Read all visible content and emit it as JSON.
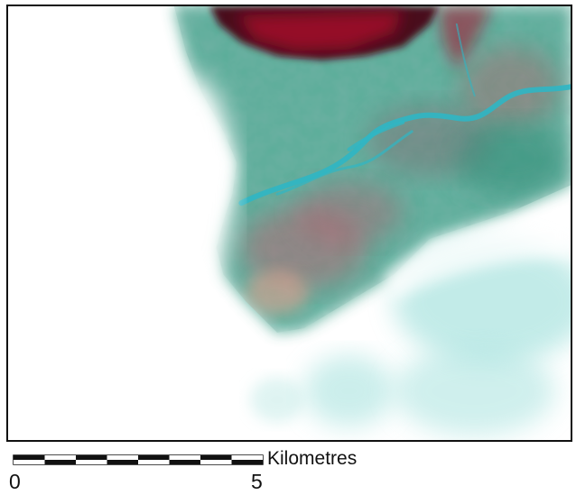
{
  "map": {
    "type": "false-color satellite image",
    "colors": {
      "vegetation": "#a8102c",
      "dense_vegetation": "#4a0a1e",
      "water": "#2fb6c4",
      "terrain": "#3f9a86",
      "haze": "#a9e3df",
      "cloud": "#ffffff"
    }
  },
  "scale_bar": {
    "unit": "Kilometres",
    "tick_labels": [
      "0",
      "5"
    ],
    "segments": 8
  }
}
